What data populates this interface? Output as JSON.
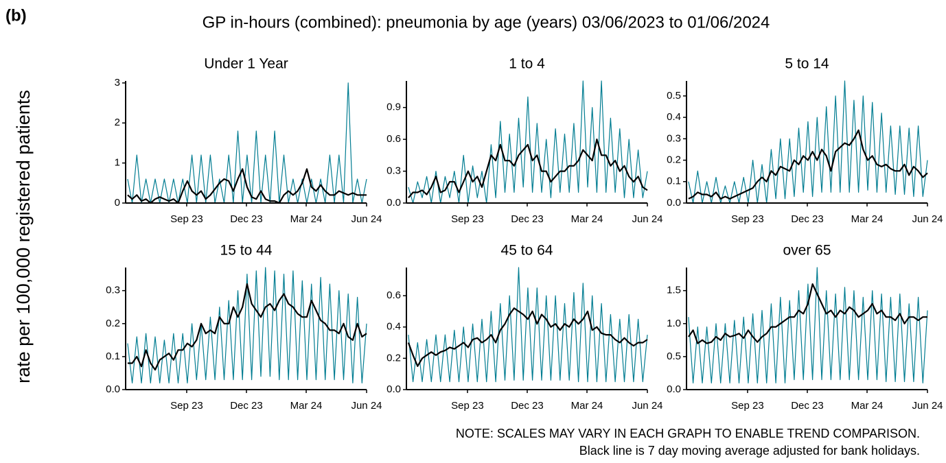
{
  "chart_data": {
    "type": "line",
    "label": "(b)",
    "title": "GP in-hours (combined): pneumonia by age (years) 03/06/2023 to 01/06/2024",
    "ylabel": "rate per 100,000 registered patients",
    "notes": [
      "NOTE: SCALES MAY VARY IN EACH GRAPH TO ENABLE TREND COMPARISON.",
      "Black line is 7 day moving average adjusted for bank holidays."
    ],
    "x": [
      0,
      7,
      14,
      21,
      28,
      35,
      42,
      49,
      56,
      63,
      70,
      77,
      84,
      91,
      98,
      105,
      112,
      119,
      126,
      133,
      140,
      147,
      154,
      161,
      168,
      175,
      182,
      189,
      196,
      203,
      210,
      217,
      224,
      231,
      238,
      245,
      252,
      259,
      266,
      273,
      280,
      287,
      294,
      301,
      308,
      315,
      322,
      329,
      336,
      343,
      350,
      357,
      364
    ],
    "xlim": [
      -3,
      364
    ],
    "xticks": [
      {
        "value": 90,
        "label": "Sep 23"
      },
      {
        "value": 181,
        "label": "Dec 23"
      },
      {
        "value": 272,
        "label": "Mar 24"
      },
      {
        "value": 364,
        "label": "Jun 24"
      }
    ],
    "panels": [
      {
        "title": "Under 1 Year",
        "ylim": [
          0,
          3.05
        ],
        "yticks": [
          0,
          1,
          2,
          3
        ],
        "series": [
          {
            "color": "#007c91",
            "values": [
              0.6,
              0,
              1.2,
              0,
              0.6,
              0,
              0.6,
              0,
              0.6,
              0,
              0.6,
              0,
              0.6,
              0,
              1.2,
              0,
              1.2,
              0,
              1.2,
              0,
              0.6,
              0,
              1.2,
              0,
              1.8,
              0,
              1.2,
              0,
              1.8,
              0,
              1.2,
              0,
              1.8,
              0,
              1.2,
              0,
              0.6,
              0,
              0.6,
              0,
              0.6,
              0,
              0.6,
              0,
              1.2,
              0,
              1.2,
              0,
              3.0,
              0,
              0.6,
              0,
              0.6
            ]
          },
          {
            "color": "#000000",
            "values": [
              0.2,
              0.1,
              0.2,
              0.05,
              0.1,
              0,
              0.1,
              0.15,
              0.1,
              0.05,
              0.1,
              0,
              0.3,
              0.55,
              0.3,
              0.2,
              0.3,
              0.1,
              0.2,
              0.35,
              0.5,
              0.6,
              0.55,
              0.3,
              0.6,
              0.85,
              0.4,
              0.15,
              0.1,
              0.3,
              0.1,
              0.05,
              0.05,
              0,
              0.2,
              0.3,
              0.2,
              0.3,
              0.5,
              0.85,
              0.4,
              0.3,
              0.45,
              0.3,
              0.2,
              0.2,
              0.3,
              0.25,
              0.2,
              0.25,
              0.2,
              0.2,
              0.2
            ]
          }
        ]
      },
      {
        "title": "1 to 4",
        "ylim": [
          0,
          1.15
        ],
        "yticks": [
          {
            "value": 0,
            "label": "0.0"
          },
          0.3,
          0.6,
          0.9
        ],
        "series": [
          {
            "color": "#007c91",
            "values": [
              0.15,
              0,
              0.2,
              0.05,
              0.25,
              0,
              0.3,
              0,
              0.25,
              0.05,
              0.3,
              0,
              0.45,
              0,
              0.35,
              0.05,
              0.3,
              0,
              0.55,
              0.05,
              0.77,
              0.1,
              0.65,
              0.1,
              0.8,
              0.15,
              1.0,
              0.1,
              0.75,
              0.1,
              0.6,
              0.05,
              0.7,
              0.1,
              0.65,
              0.1,
              0.75,
              0.1,
              1.15,
              0.15,
              0.9,
              0.1,
              1.15,
              0.1,
              0.8,
              0.1,
              0.7,
              0.05,
              0.6,
              0.05,
              0.5,
              0.05,
              0.3
            ]
          },
          {
            "color": "#000000",
            "values": [
              0.05,
              0.1,
              0.1,
              0.12,
              0.08,
              0.15,
              0.25,
              0.1,
              0.12,
              0.2,
              0.2,
              0.1,
              0.2,
              0.3,
              0.2,
              0.25,
              0.15,
              0.3,
              0.45,
              0.4,
              0.55,
              0.4,
              0.4,
              0.35,
              0.45,
              0.5,
              0.55,
              0.4,
              0.45,
              0.3,
              0.3,
              0.2,
              0.25,
              0.3,
              0.3,
              0.35,
              0.35,
              0.4,
              0.5,
              0.45,
              0.4,
              0.6,
              0.45,
              0.45,
              0.35,
              0.4,
              0.3,
              0.35,
              0.25,
              0.2,
              0.25,
              0.15,
              0.12
            ]
          }
        ]
      },
      {
        "title": "5 to 14",
        "ylim": [
          0,
          0.57
        ],
        "yticks": [
          {
            "value": 0,
            "label": "0.0"
          },
          0.1,
          0.2,
          0.3,
          0.4,
          0.5
        ],
        "series": [
          {
            "color": "#007c91",
            "values": [
              0.1,
              0,
              0.15,
              0,
              0.1,
              0,
              0.12,
              0,
              0.08,
              0,
              0.1,
              0,
              0.12,
              0,
              0.2,
              0,
              0.18,
              0,
              0.25,
              0.02,
              0.3,
              0.02,
              0.3,
              0.03,
              0.35,
              0.05,
              0.38,
              0.03,
              0.4,
              0.05,
              0.45,
              0.05,
              0.5,
              0.05,
              0.57,
              0.05,
              0.48,
              0.05,
              0.5,
              0.06,
              0.47,
              0.05,
              0.42,
              0.05,
              0.36,
              0.04,
              0.36,
              0.04,
              0.35,
              0.03,
              0.36,
              0.03,
              0.2
            ]
          },
          {
            "color": "#000000",
            "values": [
              0.02,
              0.03,
              0.05,
              0.04,
              0.04,
              0.03,
              0.05,
              0.02,
              0.03,
              0.02,
              0.03,
              0.04,
              0.05,
              0.06,
              0.07,
              0.1,
              0.12,
              0.1,
              0.15,
              0.13,
              0.17,
              0.16,
              0.15,
              0.2,
              0.18,
              0.22,
              0.2,
              0.24,
              0.2,
              0.25,
              0.22,
              0.15,
              0.24,
              0.26,
              0.28,
              0.27,
              0.3,
              0.34,
              0.25,
              0.2,
              0.22,
              0.18,
              0.17,
              0.18,
              0.16,
              0.15,
              0.15,
              0.18,
              0.13,
              0.17,
              0.15,
              0.12,
              0.14
            ]
          }
        ]
      },
      {
        "title": "15 to 44",
        "ylim": [
          0,
          0.37
        ],
        "yticks": [
          {
            "value": 0,
            "label": "0.0"
          },
          0.1,
          0.2,
          0.3
        ],
        "series": [
          {
            "color": "#007c91",
            "values": [
              0.14,
              0.02,
              0.16,
              0.02,
              0.17,
              0.02,
              0.16,
              0.02,
              0.15,
              0.02,
              0.17,
              0.02,
              0.17,
              0.02,
              0.2,
              0.03,
              0.2,
              0.03,
              0.22,
              0.03,
              0.25,
              0.03,
              0.27,
              0.03,
              0.3,
              0.03,
              0.35,
              0.03,
              0.36,
              0.04,
              0.37,
              0.04,
              0.36,
              0.03,
              0.35,
              0.03,
              0.36,
              0.03,
              0.33,
              0.03,
              0.32,
              0.03,
              0.34,
              0.03,
              0.32,
              0.03,
              0.3,
              0.03,
              0.29,
              0.02,
              0.28,
              0.02,
              0.2
            ]
          },
          {
            "color": "#000000",
            "values": [
              0.08,
              0.08,
              0.1,
              0.07,
              0.12,
              0.08,
              0.06,
              0.09,
              0.1,
              0.11,
              0.09,
              0.12,
              0.12,
              0.14,
              0.13,
              0.15,
              0.2,
              0.17,
              0.18,
              0.17,
              0.22,
              0.2,
              0.2,
              0.25,
              0.22,
              0.25,
              0.32,
              0.26,
              0.24,
              0.22,
              0.25,
              0.26,
              0.24,
              0.27,
              0.29,
              0.26,
              0.25,
              0.23,
              0.22,
              0.22,
              0.27,
              0.24,
              0.21,
              0.2,
              0.18,
              0.18,
              0.17,
              0.2,
              0.16,
              0.15,
              0.2,
              0.16,
              0.17
            ]
          }
        ]
      },
      {
        "title": "45 to 64",
        "ylim": [
          0,
          0.78
        ],
        "yticks": [
          {
            "value": 0,
            "label": "0.0"
          },
          0.2,
          0.4,
          0.6
        ],
        "series": [
          {
            "color": "#007c91",
            "values": [
              0.35,
              0.05,
              0.3,
              0.05,
              0.32,
              0.05,
              0.35,
              0.05,
              0.35,
              0.05,
              0.38,
              0.05,
              0.4,
              0.05,
              0.42,
              0.05,
              0.45,
              0.05,
              0.5,
              0.05,
              0.55,
              0.06,
              0.6,
              0.06,
              0.78,
              0.06,
              0.65,
              0.06,
              0.65,
              0.06,
              0.6,
              0.06,
              0.6,
              0.06,
              0.55,
              0.06,
              0.62,
              0.05,
              0.68,
              0.05,
              0.6,
              0.05,
              0.55,
              0.05,
              0.48,
              0.05,
              0.45,
              0.05,
              0.48,
              0.05,
              0.45,
              0.05,
              0.35
            ]
          },
          {
            "color": "#000000",
            "values": [
              0.3,
              0.22,
              0.15,
              0.2,
              0.22,
              0.24,
              0.22,
              0.24,
              0.25,
              0.27,
              0.26,
              0.28,
              0.3,
              0.27,
              0.32,
              0.33,
              0.3,
              0.32,
              0.35,
              0.3,
              0.38,
              0.42,
              0.48,
              0.52,
              0.5,
              0.48,
              0.45,
              0.5,
              0.42,
              0.48,
              0.45,
              0.4,
              0.42,
              0.38,
              0.42,
              0.4,
              0.45,
              0.42,
              0.45,
              0.5,
              0.38,
              0.4,
              0.36,
              0.35,
              0.35,
              0.32,
              0.3,
              0.33,
              0.3,
              0.28,
              0.3,
              0.3,
              0.32
            ]
          }
        ]
      },
      {
        "title": "over 65",
        "ylim": [
          0,
          1.85
        ],
        "yticks": [
          {
            "value": 0,
            "label": "0.0"
          },
          0.5,
          {
            "value": 1,
            "label": "1.0"
          },
          1.5
        ],
        "series": [
          {
            "color": "#007c91",
            "values": [
              1.1,
              0.1,
              0.95,
              0.1,
              0.95,
              0.1,
              1.0,
              0.1,
              1.0,
              0.1,
              1.05,
              0.1,
              1.1,
              0.1,
              1.15,
              0.1,
              1.2,
              0.1,
              1.3,
              0.1,
              1.4,
              0.1,
              1.35,
              0.15,
              1.5,
              0.15,
              1.6,
              0.15,
              1.85,
              0.15,
              1.5,
              0.15,
              1.45,
              0.15,
              1.55,
              0.15,
              1.5,
              0.15,
              1.4,
              0.15,
              1.5,
              0.15,
              1.45,
              0.12,
              1.4,
              0.12,
              1.45,
              0.12,
              1.3,
              0.12,
              1.4,
              0.1,
              1.2
            ]
          },
          {
            "color": "#000000",
            "values": [
              0.8,
              0.9,
              0.7,
              0.75,
              0.7,
              0.72,
              0.8,
              0.75,
              0.85,
              0.8,
              0.82,
              0.85,
              0.78,
              0.9,
              0.8,
              0.72,
              0.8,
              0.85,
              0.95,
              0.95,
              1.0,
              1.05,
              1.1,
              1.1,
              1.2,
              1.15,
              1.3,
              1.6,
              1.45,
              1.3,
              1.15,
              1.2,
              1.1,
              1.2,
              1.15,
              1.25,
              1.2,
              1.1,
              1.15,
              1.2,
              1.3,
              1.15,
              1.2,
              1.1,
              1.1,
              1.05,
              1.15,
              1.0,
              1.1,
              1.1,
              1.05,
              1.1,
              1.1
            ]
          }
        ]
      }
    ]
  }
}
